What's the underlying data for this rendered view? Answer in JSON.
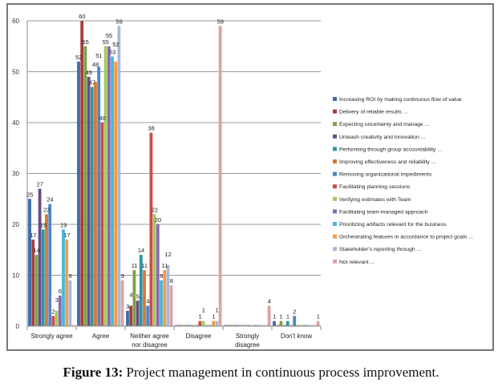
{
  "chart_data": {
    "type": "bar",
    "title": "",
    "xlabel": "",
    "ylabel": "",
    "ylim": [
      0,
      60
    ],
    "yticks": [
      0,
      10,
      20,
      30,
      40,
      50,
      60
    ],
    "grid": true,
    "legend_position": "right",
    "categories": [
      "Strongly agree",
      "Agree",
      "Neither agree nor disagree",
      "Disagree",
      "Strongly disagree",
      "Don't know"
    ],
    "category_lines": [
      [
        "Strongly agree"
      ],
      [
        "Agree"
      ],
      [
        "Neither agree",
        "nor disagree"
      ],
      [
        "Disagree"
      ],
      [
        "Strongly",
        "disagree"
      ],
      [
        "Don't know"
      ]
    ],
    "series": [
      {
        "name": "Increasing ROI by making continuous flow of value",
        "color": "#3E6BA8",
        "values": [
          25,
          52,
          3,
          0,
          0,
          1
        ]
      },
      {
        "name": "Delivery of reliable results ...",
        "color": "#A83C3A",
        "values": [
          17,
          60,
          4,
          0,
          0,
          0
        ]
      },
      {
        "name": "Expecting uncertainty and manage ...",
        "color": "#7FA043",
        "values": [
          14,
          55,
          11,
          0,
          0,
          1
        ]
      },
      {
        "name": "Unleash creativity and innovation ...",
        "color": "#654C8A",
        "values": [
          27,
          49,
          5,
          0,
          0,
          0
        ]
      },
      {
        "name": "Performing through group accountability ...",
        "color": "#2F93A8",
        "values": [
          19,
          47,
          14,
          0,
          0,
          1
        ]
      },
      {
        "name": "Improving effectiveness and reliability ...",
        "color": "#D9782E",
        "values": [
          22,
          48,
          11,
          0,
          0,
          0
        ]
      },
      {
        "name": "Removing organizational impediments",
        "color": "#4A86CC",
        "values": [
          24,
          51,
          4,
          0,
          0,
          2
        ]
      },
      {
        "name": "Facilitating planning sessions",
        "color": "#CF4B48",
        "values": [
          2,
          40,
          38,
          1,
          0,
          0
        ]
      },
      {
        "name": "Verifying estimates with Team",
        "color": "#A3CC5A",
        "values": [
          3,
          55,
          22,
          1,
          0,
          0
        ]
      },
      {
        "name": "Facilitating team-managed approach",
        "color": "#8A68B5",
        "values": [
          6,
          55,
          20,
          0,
          0,
          0
        ]
      },
      {
        "name": "Prioritizing artifacts relevant for the business",
        "color": "#46B8D8",
        "values": [
          19,
          53,
          9,
          0,
          0,
          0
        ]
      },
      {
        "name": "Orchestrating features in accordance to project goals ...",
        "color": "#F79A45",
        "values": [
          17,
          52,
          11,
          1,
          0,
          0
        ]
      },
      {
        "name": "Stakeholder's reporting through ...",
        "color": "#A8B9DA",
        "values": [
          9,
          59,
          12,
          1,
          0,
          0
        ]
      },
      {
        "name": "Not relevant ...",
        "color": "#DDA3A5",
        "values": [
          0,
          9,
          8,
          59,
          4,
          1
        ]
      }
    ]
  },
  "caption": {
    "label": "Figure 13:",
    "text": " Project management in continuous process improvement."
  }
}
